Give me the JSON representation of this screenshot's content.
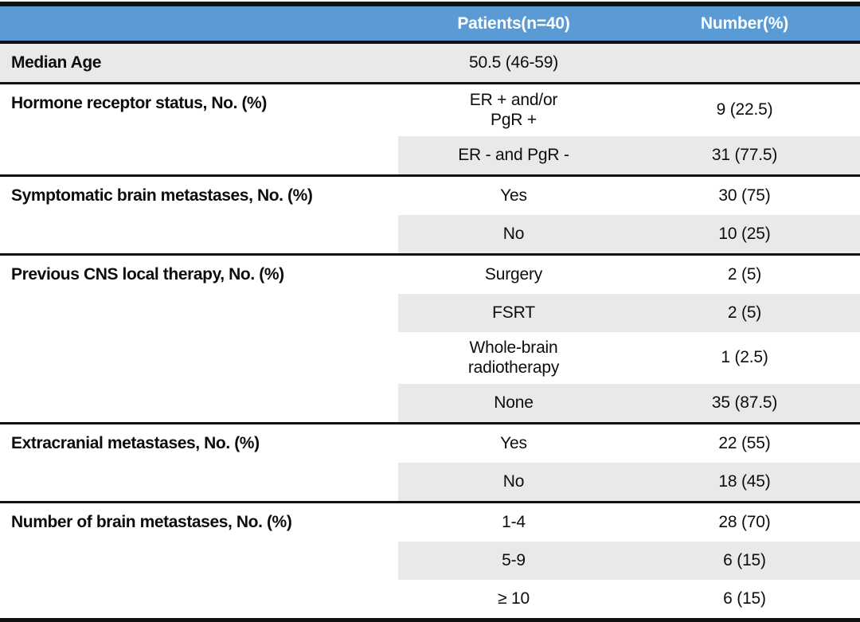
{
  "table": {
    "colors": {
      "header_bg": "#5B9BD5",
      "header_text": "#FFFFFF",
      "row_shade": "#E9E9E9",
      "rule": "#111111"
    },
    "header": {
      "col1": "",
      "col2": "Patients(n=40)",
      "col3": "Number(%)"
    },
    "sections": [
      {
        "label": "Median Age",
        "full_width_shade": true,
        "rows": [
          {
            "value": "50.5 (46-59)",
            "number": "",
            "shaded": true
          }
        ]
      },
      {
        "label": "Hormone receptor status, No. (%)",
        "full_width_shade": false,
        "rows": [
          {
            "value": "ER + and/or\nPgR +",
            "number": "9 (22.5)",
            "shaded": false
          },
          {
            "value": "ER - and PgR -",
            "number": "31 (77.5)",
            "shaded": true
          }
        ]
      },
      {
        "label": "Symptomatic brain metastases, No. (%)",
        "full_width_shade": false,
        "rows": [
          {
            "value": "Yes",
            "number": "30 (75)",
            "shaded": false
          },
          {
            "value": "No",
            "number": "10 (25)",
            "shaded": true
          }
        ]
      },
      {
        "label": "Previous CNS local therapy, No. (%)",
        "full_width_shade": false,
        "rows": [
          {
            "value": "Surgery",
            "number": "2 (5)",
            "shaded": false
          },
          {
            "value": "FSRT",
            "number": "2 (5)",
            "shaded": true
          },
          {
            "value": "Whole-brain\nradiotherapy",
            "number": "1 (2.5)",
            "shaded": false
          },
          {
            "value": "None",
            "number": "35 (87.5)",
            "shaded": true
          }
        ]
      },
      {
        "label": "Extracranial metastases, No. (%)",
        "full_width_shade": false,
        "rows": [
          {
            "value": "Yes",
            "number": "22 (55)",
            "shaded": false
          },
          {
            "value": "No",
            "number": "18 (45)",
            "shaded": true
          }
        ]
      },
      {
        "label": "Number of brain metastases, No. (%)",
        "full_width_shade": false,
        "rows": [
          {
            "value": "1-4",
            "number": "28 (70)",
            "shaded": false
          },
          {
            "value": "5-9",
            "number": "6 (15)",
            "shaded": true
          },
          {
            "value": "≥ 10",
            "number": "6 (15)",
            "shaded": false
          }
        ]
      }
    ]
  }
}
